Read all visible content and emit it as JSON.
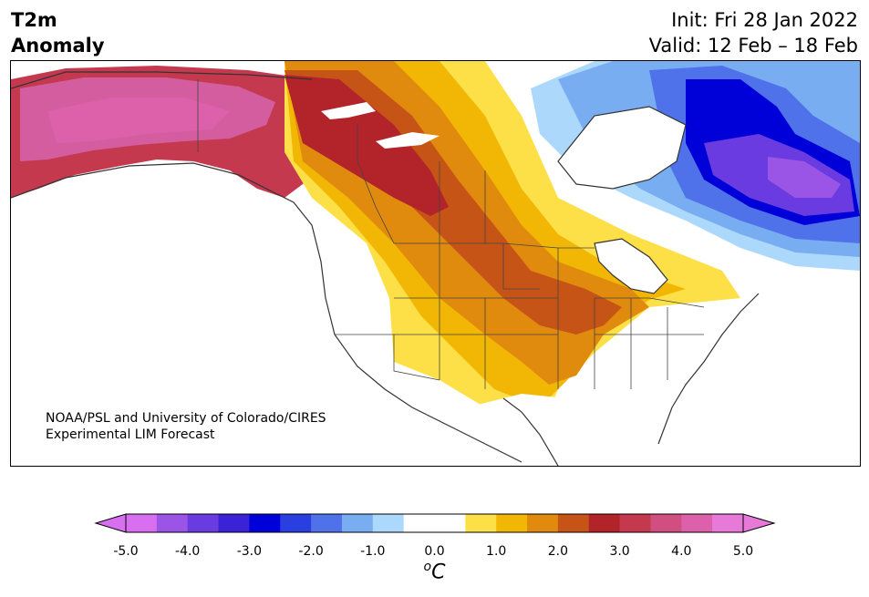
{
  "title": {
    "line1": "T2m",
    "line2": "Anomaly",
    "init": "Init: Fri 28 Jan 2022",
    "valid": "Valid: 12 Feb – 18 Feb"
  },
  "credit": {
    "line1": "NOAA/PSL and University of Colorado/CIRES",
    "line2": "Experimental LIM Forecast"
  },
  "colorbar": {
    "ticks": [
      "-5.0",
      "-4.0",
      "-3.0",
      "-2.0",
      "-1.0",
      "0.0",
      "1.0",
      "2.0",
      "3.0",
      "4.0",
      "5.0"
    ],
    "units_main": "C",
    "units_sup": "o",
    "colors": [
      "#d86ef0",
      "#9b55e6",
      "#6a3be0",
      "#3b22d6",
      "#0000d8",
      "#2b3fe0",
      "#4f72ea",
      "#79adf2",
      "#acd9fb",
      "#ffffff",
      "#ffffff",
      "#fde047",
      "#f2b705",
      "#e08a0e",
      "#c65416",
      "#b3242a",
      "#c5394f",
      "#d04f80",
      "#dc60aa",
      "#e77ad8"
    ]
  },
  "map": {
    "region": "North America",
    "colors": {
      "strong_warm": "#c5394f",
      "pink": "#d45da0",
      "dark_red": "#b3242a",
      "red_orange": "#c65416",
      "orange": "#e08a0e",
      "gold": "#f2b705",
      "yellow": "#fde047",
      "light_blue": "#acd9fb",
      "blue": "#79adf2",
      "mid_blue": "#4f72ea",
      "deep_blue": "#0000d8",
      "purple": "#6a3be0",
      "violet": "#9b55e6",
      "coast": "#333333"
    }
  }
}
